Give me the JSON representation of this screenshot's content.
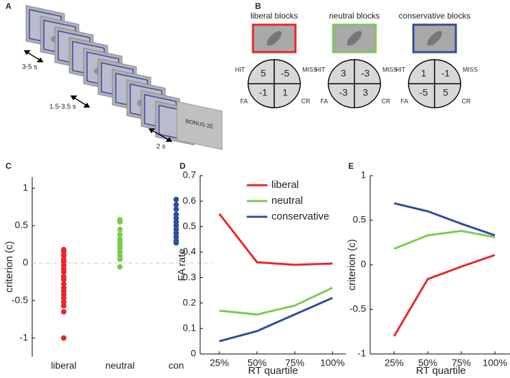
{
  "panel_labels": [
    "A",
    "B",
    "C",
    "D",
    "E"
  ],
  "panel_a": {
    "durations": [
      "3-5 s",
      "1.5-3.5 s",
      "2 s"
    ],
    "bonus": "BONUS 2E"
  },
  "panel_b": {
    "quadrant_labels": {
      "hit": "HIT",
      "miss": "MISS",
      "fa": "FA",
      "cr": "CR"
    },
    "blocks": [
      {
        "label": "liberal blocks",
        "color": "#e8262b",
        "hit": 5,
        "miss": -5,
        "fa": -1,
        "cr": 1
      },
      {
        "label": "neutral blocks",
        "color": "#7dc951",
        "hit": 3,
        "miss": -3,
        "fa": -3,
        "cr": 3
      },
      {
        "label": "conservative blocks",
        "color": "#2f4d9e",
        "hit": 1,
        "miss": -1,
        "fa": -5,
        "cr": 5
      }
    ]
  },
  "chart_data": [
    {
      "type": "strip",
      "ylabel": "criterion (c)",
      "categories": [
        "liberal",
        "neutral",
        "con"
      ],
      "colors": [
        "#e8262b",
        "#7dc951",
        "#2f4d9e"
      ],
      "values": [
        [
          0.18,
          0.15,
          0.1,
          0.05,
          0.02,
          -0.03,
          -0.08,
          -0.12,
          -0.18,
          -0.22,
          -0.28,
          -0.33,
          -0.37,
          -0.42,
          -0.47,
          -0.52,
          -0.57,
          -0.65,
          -1.0
        ],
        [
          0.58,
          0.55,
          0.45,
          0.38,
          0.32,
          0.28,
          0.25,
          0.2,
          0.15,
          0.1,
          0.05,
          -0.05
        ],
        [
          0.85,
          0.78,
          0.72,
          0.65,
          0.6,
          0.55,
          0.5,
          0.45,
          0.4,
          0.35,
          0.3,
          0.27
        ]
      ],
      "ylim": [
        -1.25,
        1.15
      ],
      "yticks": [
        -1,
        -0.5,
        0,
        0.5,
        1
      ],
      "reference_line": 0
    },
    {
      "type": "line",
      "xlabel": "RT quartile",
      "ylabel": "FA rate",
      "categories": [
        "25%",
        "50%",
        "75%",
        "100%"
      ],
      "series": [
        {
          "name": "liberal",
          "color": "#e8262b",
          "values": [
            0.55,
            0.36,
            0.35,
            0.355
          ]
        },
        {
          "name": "neutral",
          "color": "#7dc951",
          "values": [
            0.17,
            0.155,
            0.19,
            0.26
          ]
        },
        {
          "name": "conservative",
          "color": "#2f4d9e",
          "values": [
            0.05,
            0.09,
            0.155,
            0.22
          ]
        }
      ],
      "ylim": [
        0,
        0.7
      ],
      "yticks": [
        0,
        0.1,
        0.2,
        0.3,
        0.4,
        0.5,
        0.6,
        0.7
      ],
      "legend": "upper-right"
    },
    {
      "type": "line",
      "xlabel": "RT quartile",
      "ylabel": "criterion (c)",
      "categories": [
        "25%",
        "50%",
        "75%",
        "100%"
      ],
      "series": [
        {
          "name": "liberal",
          "color": "#e8262b",
          "values": [
            -0.8,
            -0.16,
            -0.02,
            0.11
          ]
        },
        {
          "name": "neutral",
          "color": "#7dc951",
          "values": [
            0.18,
            0.33,
            0.38,
            0.31
          ]
        },
        {
          "name": "conservative",
          "color": "#2f4d9e",
          "values": [
            0.69,
            0.6,
            0.46,
            0.33
          ]
        }
      ],
      "ylim": [
        -1,
        1
      ],
      "yticks": [
        -1,
        -0.5,
        0,
        0.5,
        1
      ]
    }
  ]
}
